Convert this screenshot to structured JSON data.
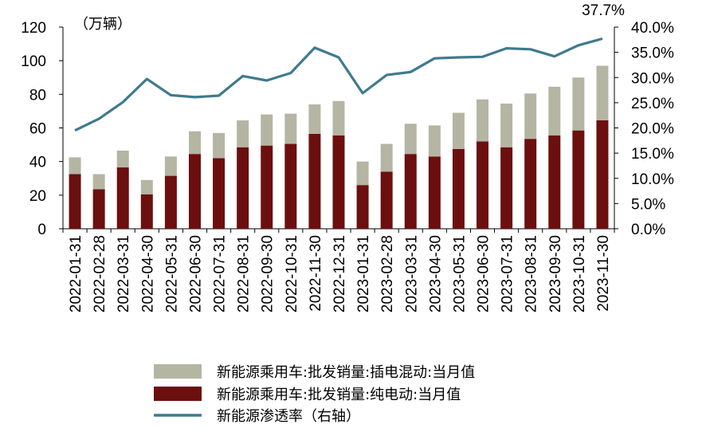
{
  "chart_data": {
    "type": "bar",
    "stacked": true,
    "unit_label": "（万辆）",
    "categories": [
      "2022-01-31",
      "2022-02-28",
      "2022-03-31",
      "2022-04-30",
      "2022-05-31",
      "2022-06-30",
      "2022-07-31",
      "2022-08-31",
      "2022-09-30",
      "2022-10-31",
      "2022-11-30",
      "2022-12-31",
      "2023-01-31",
      "2023-02-28",
      "2023-03-31",
      "2023-04-30",
      "2023-05-31",
      "2023-06-30",
      "2023-07-31",
      "2023-08-31",
      "2023-09-30",
      "2023-10-31",
      "2023-11-30"
    ],
    "series": [
      {
        "name": "新能源乘用车:批发销量:纯电动:当月值",
        "type": "bar",
        "axis": "left",
        "color": "#6b0f0f",
        "values": [
          32.5,
          23.5,
          36.5,
          20.5,
          31.5,
          44.5,
          42.0,
          48.5,
          49.5,
          50.5,
          56.5,
          55.5,
          26.0,
          34.0,
          44.5,
          43.0,
          47.5,
          52.0,
          48.5,
          53.5,
          55.5,
          58.5,
          64.5
        ]
      },
      {
        "name": "新能源乘用车:批发销量:插电混动:当月值",
        "type": "bar",
        "axis": "left",
        "color": "#b5b5a3",
        "values": [
          10.0,
          9.0,
          10.0,
          8.5,
          11.5,
          13.5,
          15.0,
          16.0,
          18.5,
          18.0,
          17.5,
          20.5,
          14.0,
          16.5,
          18.0,
          18.5,
          21.5,
          25.0,
          26.0,
          27.0,
          29.0,
          31.5,
          32.5
        ]
      },
      {
        "name": "新能源渗透率（右轴）",
        "type": "line",
        "axis": "right",
        "color": "#3f7a8e",
        "values": [
          19.5,
          21.8,
          25.1,
          29.7,
          26.5,
          26.1,
          26.4,
          30.3,
          29.4,
          30.9,
          35.9,
          34.0,
          26.9,
          30.5,
          31.1,
          33.8,
          34.0,
          34.1,
          35.8,
          35.6,
          34.2,
          36.4,
          37.7
        ]
      }
    ],
    "annotation": "37.7%",
    "y_left": {
      "min": 0,
      "max": 120,
      "ticks": [
        "0",
        "20",
        "40",
        "60",
        "80",
        "100",
        "120"
      ]
    },
    "y_right": {
      "min": 0,
      "max": 40,
      "ticks": [
        "0.0%",
        "5.0%",
        "10.0%",
        "15.0%",
        "20.0%",
        "25.0%",
        "30.0%",
        "35.0%",
        "40.0%"
      ]
    },
    "grid": false,
    "legend_position": "bottom"
  },
  "legend": [
    {
      "label": "新能源乘用车:批发销量:插电混动:当月值",
      "kind": "bar",
      "color": "#b5b5a3"
    },
    {
      "label": "新能源乘用车:批发销量:纯电动:当月值",
      "kind": "bar",
      "color": "#6b0f0f"
    },
    {
      "label": "新能源渗透率（右轴）",
      "kind": "line",
      "color": "#3f7a8e"
    }
  ]
}
